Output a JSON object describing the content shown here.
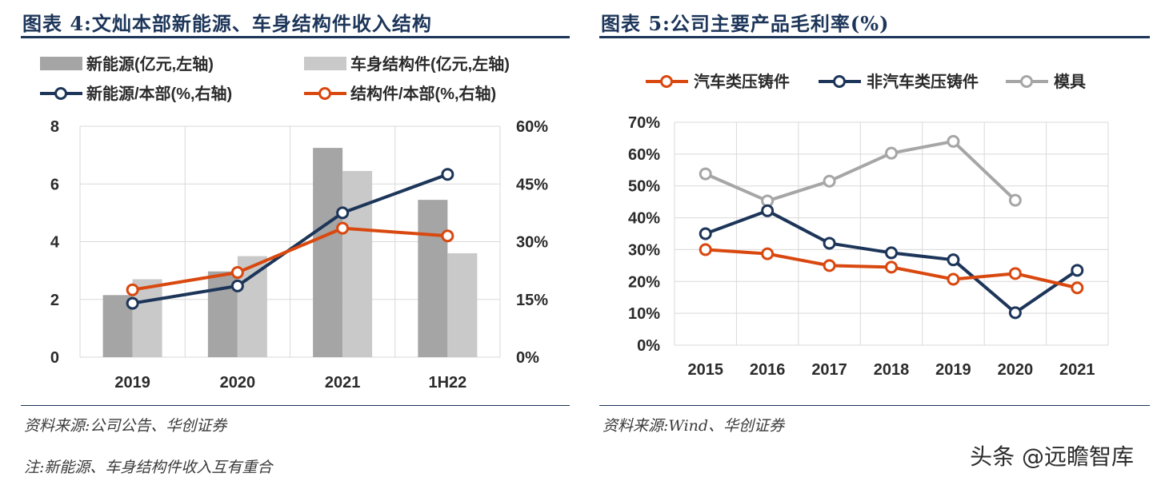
{
  "left_panel": {
    "title": "图表 4:文灿本部新能源、车身结构件收入结构",
    "source": "资料来源:公司公告、华创证券",
    "note": "注:新能源、车身结构件收入互有重合"
  },
  "right_panel": {
    "title": "图表 5:公司主要产品毛利率(%)",
    "source": "资料来源:Wind、华创证券"
  },
  "watermark": "头条 @远瞻智库",
  "colors": {
    "title_blue": "#1c3559",
    "bar_dark": "#a5a5a5",
    "bar_light": "#c9c9c9",
    "line_navy": "#1c3559",
    "line_orange": "#d9480f",
    "line_gray": "#a6a6a6"
  },
  "chart_data": [
    {
      "type": "bar",
      "categories": [
        "2019",
        "2020",
        "2021",
        "1H22"
      ],
      "series": [
        {
          "name": "新能源(亿元,左轴)",
          "kind": "bar",
          "axis": "left",
          "color": "#a5a5a5",
          "values": [
            2.15,
            2.97,
            7.25,
            5.45
          ]
        },
        {
          "name": "车身结构件(亿元,左轴)",
          "kind": "bar",
          "axis": "left",
          "color": "#c9c9c9",
          "values": [
            2.7,
            3.5,
            6.45,
            3.6
          ]
        },
        {
          "name": "新能源/本部(%,右轴)",
          "kind": "line",
          "axis": "right",
          "color": "#1c3559",
          "values": [
            14,
            18.5,
            37.5,
            47.5
          ]
        },
        {
          "name": "结构件/本部(%,右轴)",
          "kind": "line",
          "axis": "right",
          "color": "#d9480f",
          "values": [
            17.5,
            22,
            33.5,
            31.5
          ]
        }
      ],
      "y_left": {
        "min": 0,
        "max": 8,
        "ticks": [
          "0",
          "2",
          "4",
          "6",
          "8"
        ]
      },
      "y_right": {
        "min": 0,
        "max": 60,
        "ticks": [
          "0%",
          "15%",
          "30%",
          "45%",
          "60%"
        ]
      },
      "grid": true,
      "legend_position": "top"
    },
    {
      "type": "line",
      "categories": [
        "2015",
        "2016",
        "2017",
        "2018",
        "2019",
        "2020",
        "2021"
      ],
      "series": [
        {
          "name": "汽车类压铸件",
          "color": "#d9480f",
          "values": [
            30,
            28.7,
            25,
            24.5,
            20.7,
            22.5,
            18
          ]
        },
        {
          "name": "非汽车类压铸件",
          "color": "#1c3559",
          "values": [
            35,
            42.2,
            32,
            29,
            26.8,
            10.2,
            23.5
          ]
        },
        {
          "name": "模具",
          "color": "#a6a6a6",
          "values": [
            53.8,
            45.3,
            51.5,
            60.3,
            64,
            45.5,
            null
          ]
        }
      ],
      "y": {
        "min": 0,
        "max": 70,
        "ticks": [
          "0%",
          "10%",
          "20%",
          "30%",
          "40%",
          "50%",
          "60%",
          "70%"
        ]
      },
      "grid": true,
      "legend_position": "top"
    }
  ]
}
